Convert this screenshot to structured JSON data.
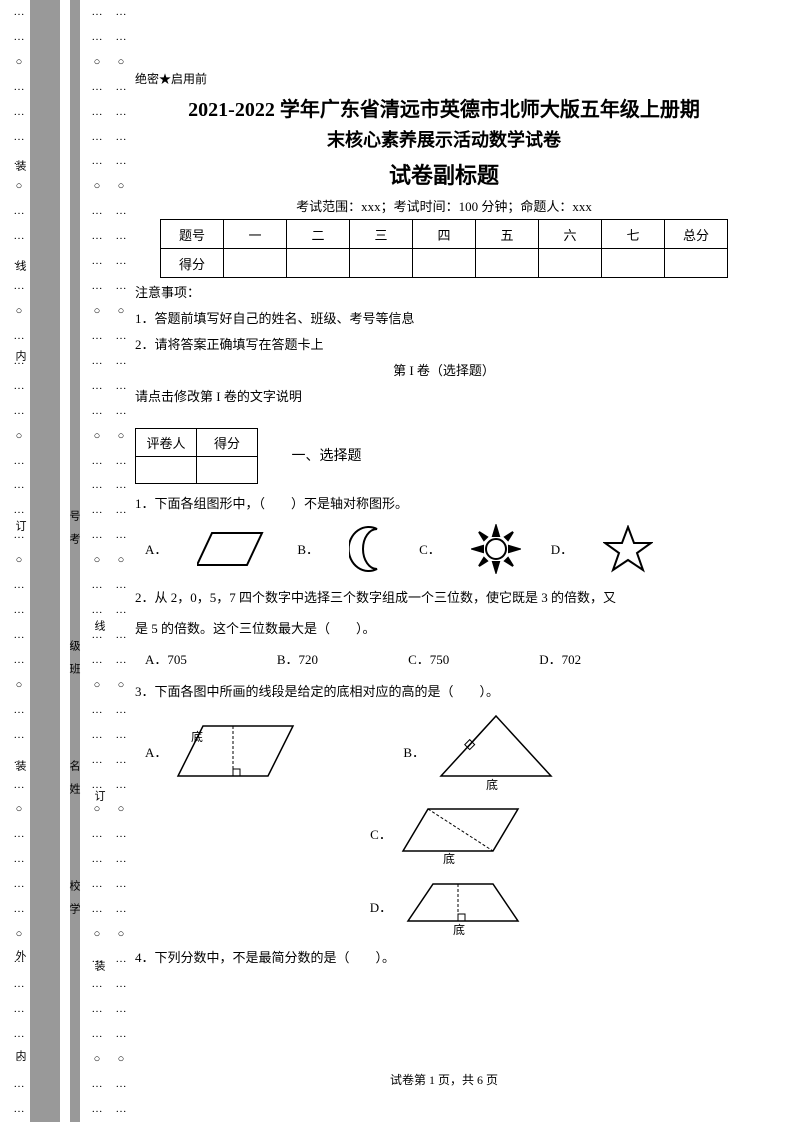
{
  "header": {
    "secret": "绝密★启用前",
    "title_line1": "2021-2022 学年广东省清远市英德市北师大版五年级上册期",
    "title_line2": "末核心素养展示活动数学试卷",
    "subtitle": "试卷副标题",
    "meta": "考试范围：xxx；考试时间：100 分钟；命题人：xxx"
  },
  "score_table": {
    "row1": [
      "题号",
      "一",
      "二",
      "三",
      "四",
      "五",
      "六",
      "七",
      "总分"
    ],
    "row2_label": "得分"
  },
  "notes": {
    "heading": "注意事项：",
    "n1": "1．答题前填写好自己的姓名、班级、考号等信息",
    "n2": "2．请将答案正确填写在答题卡上",
    "part1": "第 I 卷（选择题）",
    "part1_note": "请点击修改第 I 卷的文字说明"
  },
  "eval": {
    "c1": "评卷人",
    "c2": "得分",
    "section": "一、选择题"
  },
  "q1": {
    "stem": "1．下面各组图形中，（　　）不是轴对称图形。",
    "A": "A．",
    "B": "B．",
    "C": "C．",
    "D": "D．"
  },
  "q2": {
    "stem1": "2．从 2，0，5，7 四个数字中选择三个数字组成一个三位数，使它既是 3 的倍数，又",
    "stem2": "是 5 的倍数。这个三位数最大是（　　）。",
    "A": "A．705",
    "B": "B．720",
    "C": "C．750",
    "D": "D．702"
  },
  "q3": {
    "stem": "3．下面各图中所画的线段是给定的底相对应的高的是（　　）。",
    "A": "A．",
    "B": "B．",
    "C": "C．",
    "D": "D．",
    "base": "底"
  },
  "q4": {
    "stem": "4．下列分数中，不是最简分数的是（　　）。"
  },
  "footer": "试卷第 1 页，共 6 页",
  "binding": {
    "left_labels": [
      "装",
      "线",
      "内",
      "订",
      "装",
      "外",
      "内"
    ],
    "sidebar_labels": [
      "号考",
      "级班",
      "名姓",
      "校学"
    ],
    "mini": [
      "线",
      "订",
      "装"
    ]
  },
  "colors": {
    "strip": "#999999",
    "text": "#000000",
    "bg": "#ffffff"
  }
}
